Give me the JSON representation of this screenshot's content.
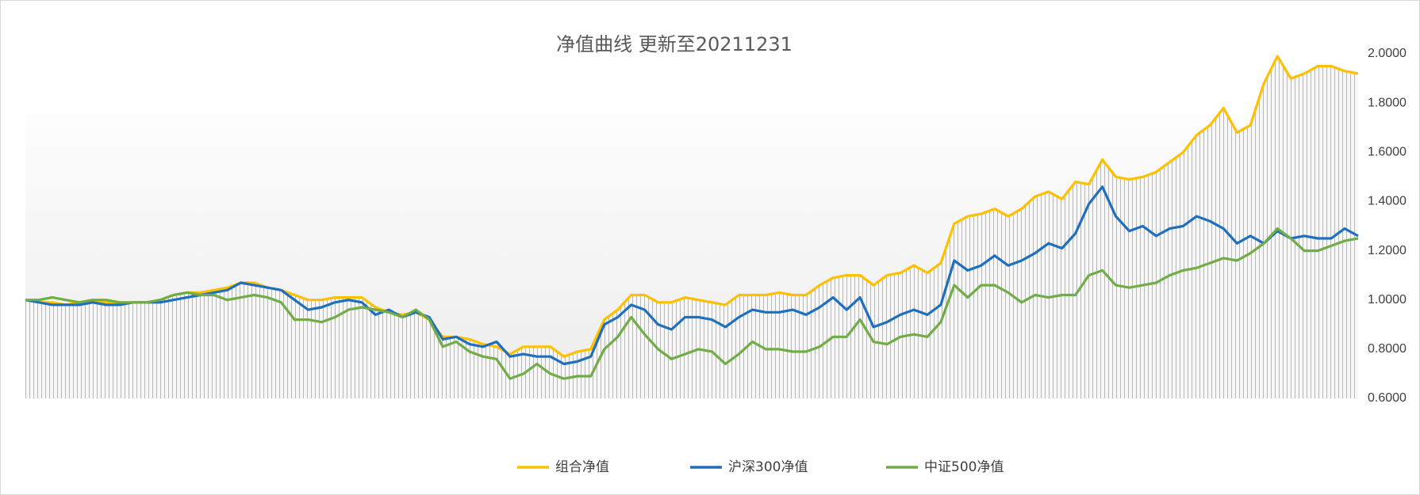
{
  "chart_data": {
    "type": "line",
    "title": "净值曲线 更新至20211231",
    "series": [
      {
        "name": "组合净值",
        "color": "#ffc000",
        "area": true,
        "values": [
          1.0,
          0.99,
          0.99,
          0.98,
          0.99,
          1.0,
          0.99,
          0.99,
          0.99,
          0.99,
          1.0,
          1.02,
          1.03,
          1.03,
          1.04,
          1.05,
          1.07,
          1.07,
          1.05,
          1.04,
          1.02,
          1.0,
          1.0,
          1.01,
          1.01,
          1.01,
          0.97,
          0.95,
          0.94,
          0.95,
          0.92,
          0.85,
          0.85,
          0.84,
          0.82,
          0.81,
          0.78,
          0.81,
          0.81,
          0.81,
          0.77,
          0.79,
          0.8,
          0.92,
          0.96,
          1.02,
          1.02,
          0.99,
          0.99,
          1.01,
          1.0,
          0.99,
          0.98,
          1.02,
          1.02,
          1.02,
          1.03,
          1.02,
          1.02,
          1.06,
          1.09,
          1.1,
          1.1,
          1.06,
          1.1,
          1.11,
          1.14,
          1.11,
          1.15,
          1.31,
          1.34,
          1.35,
          1.37,
          1.34,
          1.37,
          1.42,
          1.44,
          1.41,
          1.48,
          1.47,
          1.57,
          1.5,
          1.49,
          1.5,
          1.52,
          1.56,
          1.6,
          1.67,
          1.71,
          1.78,
          1.68,
          1.71,
          1.88,
          1.99,
          1.9,
          1.92,
          1.95,
          1.95,
          1.93,
          1.92
        ]
      },
      {
        "name": "沪深300净值",
        "color": "#1f6fbf",
        "values": [
          1.0,
          0.99,
          0.98,
          0.98,
          0.98,
          0.99,
          0.98,
          0.98,
          0.99,
          0.99,
          0.99,
          1.0,
          1.01,
          1.02,
          1.03,
          1.04,
          1.07,
          1.06,
          1.05,
          1.04,
          1.0,
          0.96,
          0.97,
          0.99,
          1.0,
          0.99,
          0.94,
          0.96,
          0.93,
          0.95,
          0.93,
          0.84,
          0.85,
          0.82,
          0.81,
          0.83,
          0.77,
          0.78,
          0.77,
          0.77,
          0.74,
          0.75,
          0.77,
          0.9,
          0.93,
          0.98,
          0.96,
          0.9,
          0.88,
          0.93,
          0.93,
          0.92,
          0.89,
          0.93,
          0.96,
          0.95,
          0.95,
          0.96,
          0.94,
          0.97,
          1.01,
          0.96,
          1.01,
          0.89,
          0.91,
          0.94,
          0.96,
          0.94,
          0.98,
          1.16,
          1.12,
          1.14,
          1.18,
          1.14,
          1.16,
          1.19,
          1.23,
          1.21,
          1.27,
          1.39,
          1.46,
          1.34,
          1.28,
          1.3,
          1.26,
          1.29,
          1.3,
          1.34,
          1.32,
          1.29,
          1.23,
          1.26,
          1.23,
          1.28,
          1.25,
          1.26,
          1.25,
          1.25,
          1.29,
          1.26
        ]
      },
      {
        "name": "中证500净值",
        "color": "#70ad47",
        "values": [
          1.0,
          1.0,
          1.01,
          1.0,
          0.99,
          1.0,
          1.0,
          0.99,
          0.99,
          0.99,
          1.0,
          1.02,
          1.03,
          1.02,
          1.02,
          1.0,
          1.01,
          1.02,
          1.01,
          0.99,
          0.92,
          0.92,
          0.91,
          0.93,
          0.96,
          0.97,
          0.96,
          0.95,
          0.93,
          0.96,
          0.92,
          0.81,
          0.83,
          0.79,
          0.77,
          0.76,
          0.68,
          0.7,
          0.74,
          0.7,
          0.68,
          0.69,
          0.69,
          0.8,
          0.85,
          0.93,
          0.86,
          0.8,
          0.76,
          0.78,
          0.8,
          0.79,
          0.74,
          0.78,
          0.83,
          0.8,
          0.8,
          0.79,
          0.79,
          0.81,
          0.85,
          0.85,
          0.92,
          0.83,
          0.82,
          0.85,
          0.86,
          0.85,
          0.91,
          1.06,
          1.01,
          1.06,
          1.06,
          1.03,
          0.99,
          1.02,
          1.01,
          1.02,
          1.02,
          1.1,
          1.12,
          1.06,
          1.05,
          1.06,
          1.07,
          1.1,
          1.12,
          1.13,
          1.15,
          1.17,
          1.16,
          1.19,
          1.23,
          1.29,
          1.25,
          1.2,
          1.2,
          1.22,
          1.24,
          1.25
        ]
      }
    ],
    "ylim": [
      0.6,
      2.0
    ],
    "yticks": [
      {
        "value": 0.6,
        "label": "0.6000"
      },
      {
        "value": 0.8,
        "label": "0.8000"
      },
      {
        "value": 1.0,
        "label": "1.0000"
      },
      {
        "value": 1.2,
        "label": "1.2000"
      },
      {
        "value": 1.4,
        "label": "1.4000"
      },
      {
        "value": 1.6,
        "label": "1.6000"
      },
      {
        "value": 1.8,
        "label": "1.8000"
      },
      {
        "value": 2.0,
        "label": "2.0000"
      }
    ],
    "y_axis_side": "right",
    "grid": false,
    "legend": "bottom"
  }
}
